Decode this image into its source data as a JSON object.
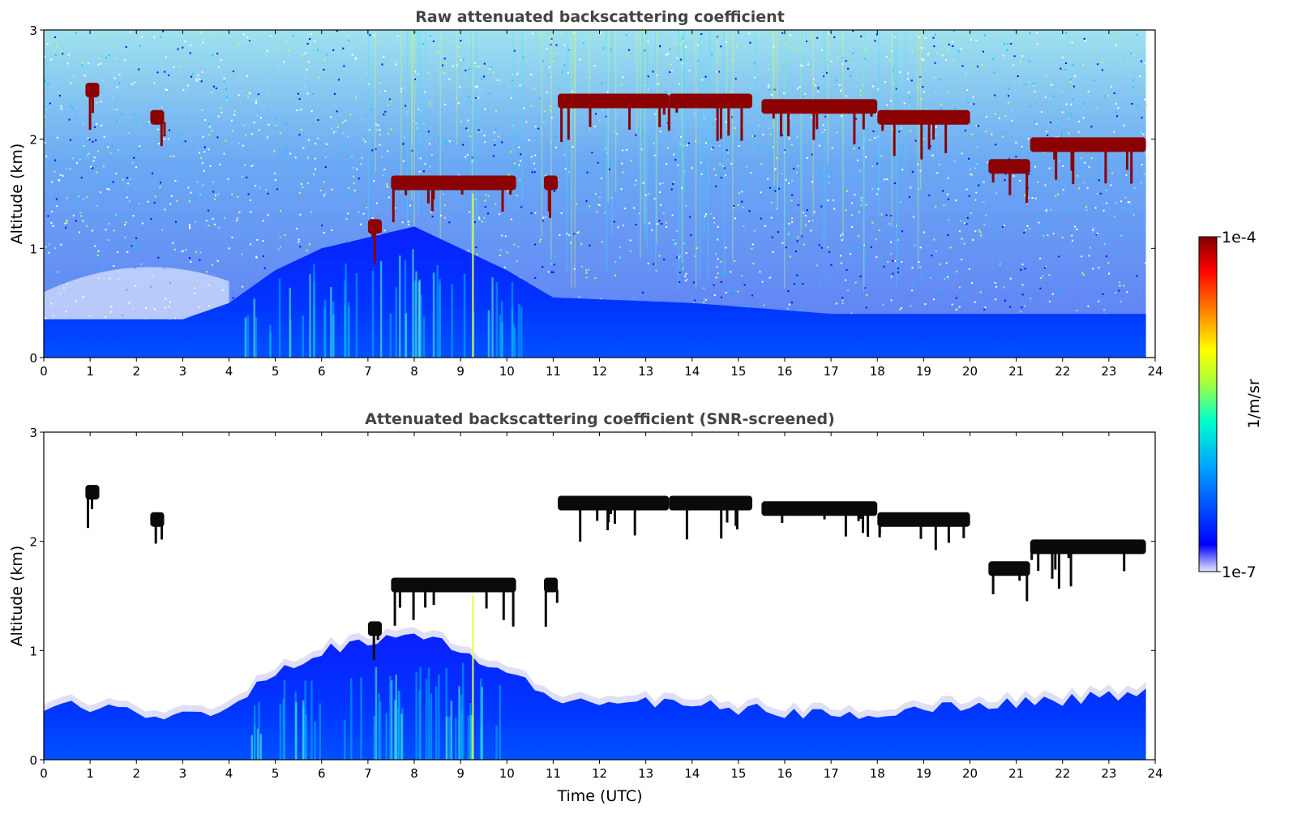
{
  "chart_data": [
    {
      "type": "heatmap",
      "title": "Raw attenuated backscattering coefficient",
      "xlabel": "",
      "ylabel": "Altitude (km)",
      "xlim": [
        0,
        24
      ],
      "ylim": [
        0,
        3
      ],
      "xticks": [
        "0",
        "1",
        "2",
        "3",
        "4",
        "5",
        "6",
        "7",
        "8",
        "9",
        "10",
        "11",
        "12",
        "13",
        "14",
        "15",
        "16",
        "17",
        "18",
        "19",
        "20",
        "21",
        "22",
        "23",
        "24"
      ],
      "yticks": [
        "0",
        "1",
        "2",
        "3"
      ],
      "data_coverage_end_hour": 23.8,
      "cloud_layers": [
        {
          "x_start": 0.9,
          "x_end": 1.2,
          "altitude_km": 2.45
        },
        {
          "x_start": 2.3,
          "x_end": 2.6,
          "altitude_km": 2.2
        },
        {
          "x_start": 7.0,
          "x_end": 7.3,
          "altitude_km": 1.2
        },
        {
          "x_start": 7.5,
          "x_end": 10.2,
          "altitude_km": 1.6
        },
        {
          "x_start": 10.8,
          "x_end": 11.1,
          "altitude_km": 1.6
        },
        {
          "x_start": 11.1,
          "x_end": 13.5,
          "altitude_km": 2.35
        },
        {
          "x_start": 13.5,
          "x_end": 15.3,
          "altitude_km": 2.35
        },
        {
          "x_start": 15.5,
          "x_end": 18.0,
          "altitude_km": 2.3
        },
        {
          "x_start": 18.0,
          "x_end": 20.0,
          "altitude_km": 2.2
        },
        {
          "x_start": 20.4,
          "x_end": 21.3,
          "altitude_km": 1.75
        },
        {
          "x_start": 21.3,
          "x_end": 23.8,
          "altitude_km": 1.95
        }
      ],
      "boundary_layer_top_km": [
        [
          0,
          0.35
        ],
        [
          3,
          0.35
        ],
        [
          4,
          0.5
        ],
        [
          5,
          0.8
        ],
        [
          6,
          1.0
        ],
        [
          7,
          1.1
        ],
        [
          8,
          1.2
        ],
        [
          9,
          1.0
        ],
        [
          10,
          0.8
        ],
        [
          11,
          0.55
        ],
        [
          14,
          0.5
        ],
        [
          17,
          0.4
        ],
        [
          20,
          0.4
        ],
        [
          23.8,
          0.4
        ]
      ]
    },
    {
      "type": "heatmap",
      "title": "Attenuated backscattering coefficient (SNR-screened)",
      "xlabel": "Time (UTC)",
      "ylabel": "Altitude (km)",
      "xlim": [
        0,
        24
      ],
      "ylim": [
        0,
        3
      ],
      "xticks": [
        "0",
        "1",
        "2",
        "3",
        "4",
        "5",
        "6",
        "7",
        "8",
        "9",
        "10",
        "11",
        "12",
        "13",
        "14",
        "15",
        "16",
        "17",
        "18",
        "19",
        "20",
        "21",
        "22",
        "23",
        "24"
      ],
      "yticks": [
        "0",
        "1",
        "2",
        "3"
      ],
      "data_coverage_end_hour": 23.8,
      "boundary_layer_top_km": [
        [
          0,
          0.5
        ],
        [
          3,
          0.4
        ],
        [
          4,
          0.5
        ],
        [
          5,
          0.8
        ],
        [
          6,
          1.0
        ],
        [
          7,
          1.1
        ],
        [
          8,
          1.15
        ],
        [
          9,
          1.0
        ],
        [
          10,
          0.8
        ],
        [
          11,
          0.55
        ],
        [
          14,
          0.5
        ],
        [
          17,
          0.4
        ],
        [
          20,
          0.5
        ],
        [
          23.8,
          0.6
        ]
      ]
    }
  ],
  "colorbar": {
    "label": "1/m/sr",
    "max_label": "1e-4",
    "min_label": "1e-7",
    "colormap": [
      "#e8e8f8",
      "#0000ff",
      "#00a8ff",
      "#00ffcc",
      "#a0ff40",
      "#ffff00",
      "#ff8000",
      "#ff0000",
      "#800000"
    ]
  }
}
